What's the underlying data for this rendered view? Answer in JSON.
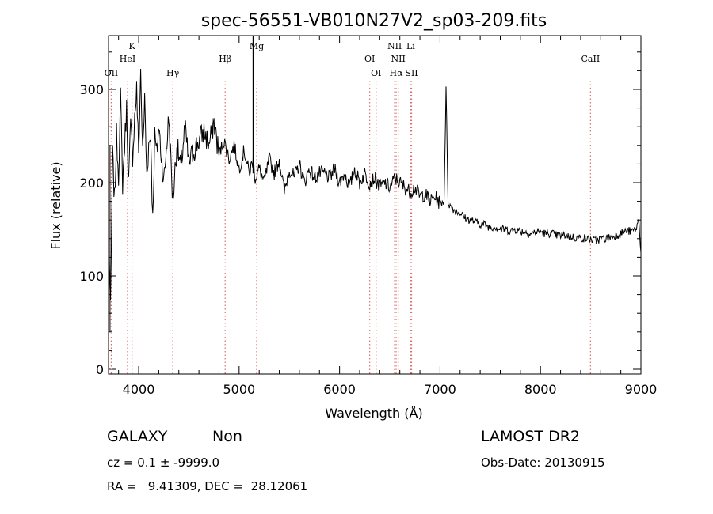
{
  "chart_data": {
    "type": "line",
    "title": "spec-56551-VB010N27V2_sp03-209.fits",
    "xlabel": "Wavelength (Å)",
    "ylabel": "Flux (relative)",
    "xlim": [
      3700,
      9000
    ],
    "ylim": [
      0,
      350
    ],
    "x_ticks": [
      4000,
      5000,
      6000,
      7000,
      8000,
      9000
    ],
    "y_ticks": [
      0,
      100,
      200,
      300
    ],
    "grid": false,
    "line_color": "#000000",
    "marker_color": "#e07070",
    "spectral_lines": [
      {
        "label": "OII",
        "x": 3727,
        "row": 3
      },
      {
        "label": "K",
        "x": 3934,
        "row": 1
      },
      {
        "label": "HeI",
        "x": 3889,
        "row": 2
      },
      {
        "label": "Hγ",
        "x": 4340,
        "row": 3
      },
      {
        "label": "Hβ",
        "x": 4861,
        "row": 2
      },
      {
        "label": "Mg",
        "x": 5175,
        "row": 1
      },
      {
        "label": "OI",
        "x": 6300,
        "row": 2
      },
      {
        "label": "OI",
        "x": 6364,
        "row": 3
      },
      {
        "label": "NII",
        "x": 6548,
        "row": 1
      },
      {
        "label": "NII",
        "x": 6584,
        "row": 2
      },
      {
        "label": "Hα",
        "x": 6563,
        "row": 3
      },
      {
        "label": "Li",
        "x": 6708,
        "row": 1
      },
      {
        "label": "SII",
        "x": 6717,
        "row": 3
      },
      {
        "label": "CaII",
        "x": 8498,
        "row": 2
      }
    ],
    "series": [
      {
        "values_x": [
          3700,
          3720,
          3740,
          3760,
          3780,
          3800,
          3820,
          3840,
          3860,
          3880,
          3900,
          3920,
          3940,
          3960,
          3980,
          4000,
          4020,
          4040,
          4060,
          4080,
          4100,
          4120,
          4140,
          4160,
          4180,
          4200,
          4250,
          4300,
          4340,
          4380,
          4420,
          4460,
          4500,
          4550,
          4600,
          4650,
          4700,
          4750,
          4800,
          4850,
          4900,
          4950,
          5000,
          5050,
          5100,
          5140,
          5160,
          5200,
          5250,
          5300,
          5350,
          5400,
          5450,
          5500,
          5550,
          5600,
          5650,
          5700,
          5750,
          5800,
          5850,
          5900,
          5950,
          6000,
          6050,
          6100,
          6150,
          6200,
          6250,
          6300,
          6350,
          6400,
          6450,
          6500,
          6550,
          6600,
          6650,
          6700,
          6750,
          6800,
          6850,
          6900,
          6950,
          7000,
          7040,
          7060,
          7080,
          7100,
          7150,
          7200,
          7250,
          7300,
          7350,
          7400,
          7450,
          7500,
          7550,
          7600,
          7650,
          7700,
          7750,
          7800,
          7850,
          7900,
          7950,
          8000,
          8050,
          8100,
          8150,
          8200,
          8250,
          8300,
          8350,
          8400,
          8450,
          8500,
          8550,
          8600,
          8650,
          8700,
          8750,
          8800,
          8850,
          8900,
          8950,
          8980,
          9000
        ],
        "values_y": [
          140,
          60,
          230,
          180,
          250,
          210,
          290,
          200,
          240,
          280,
          200,
          260,
          230,
          270,
          300,
          230,
          320,
          230,
          290,
          210,
          240,
          250,
          160,
          250,
          230,
          260,
          200,
          270,
          180,
          240,
          215,
          260,
          220,
          235,
          245,
          255,
          240,
          265,
          230,
          245,
          225,
          240,
          215,
          235,
          210,
          225,
          205,
          215,
          200,
          225,
          210,
          225,
          190,
          215,
          205,
          220,
          200,
          215,
          205,
          210,
          210,
          205,
          215,
          200,
          210,
          195,
          215,
          200,
          210,
          200,
          205,
          195,
          200,
          195,
          205,
          200,
          195,
          190,
          195,
          185,
          188,
          180,
          185,
          178,
          180,
          300,
          180,
          175,
          170,
          168,
          162,
          160,
          158,
          156,
          155,
          152,
          153,
          150,
          150,
          148,
          150,
          148,
          147,
          145,
          147,
          148,
          145,
          146,
          144,
          143,
          144,
          142,
          141,
          141,
          140,
          139,
          138,
          140,
          140,
          142,
          143,
          146,
          148,
          148,
          150,
          160,
          125
        ]
      }
    ]
  },
  "footer": {
    "object_class": "GALAXY",
    "subclass": "Non",
    "survey": "LAMOST DR2",
    "redshift": "cz = 0.1 ± -9999.0",
    "obs_date": "Obs-Date: 20130915",
    "coords": "RA =   9.41309, DEC =  28.12061"
  }
}
